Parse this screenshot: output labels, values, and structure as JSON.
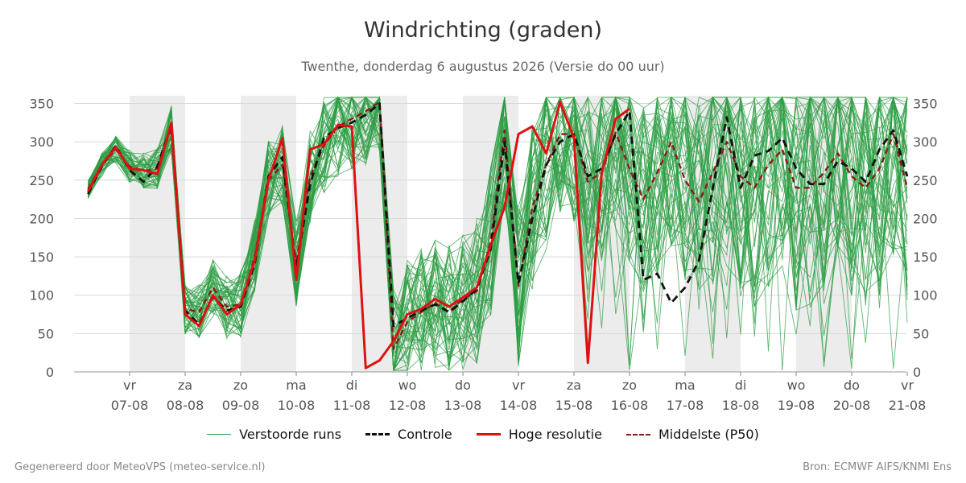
{
  "title": "Windrichting (graden)",
  "subtitle": "Twenthe, donderdag  6 augustus 2026 (Versie do 00 uur)",
  "footer_left": "Gegenereerd door MeteoVPS (meteo-service.nl)",
  "footer_right": "Bron: ECMWF AIFS/KNMI Ens",
  "colors": {
    "ensemble": "#2e9e44",
    "control": "#111111",
    "hires": "#e01010",
    "median": "#8b1a1a",
    "shade": "#ececec",
    "grid": "#d9d9d9"
  },
  "legend": [
    {
      "label": "Verstoorde runs",
      "key": "ensemble",
      "style": "thin"
    },
    {
      "label": "Controle",
      "key": "control",
      "style": "dashed"
    },
    {
      "label": "Hoge resolutie",
      "key": "hires",
      "style": "solid"
    },
    {
      "label": "Middelste (P50)",
      "key": "median",
      "style": "dashed-thin"
    }
  ],
  "chart_data": {
    "type": "line",
    "title": "Windrichting (graden)",
    "x_unit": "days from 07-08 00:00",
    "xlim": [
      -0.75,
      14.0
    ],
    "ylim": [
      0,
      360
    ],
    "yticks": [
      0,
      50,
      100,
      150,
      200,
      250,
      300,
      350
    ],
    "xticks": [
      {
        "x": 0,
        "day": "vr",
        "date": "07-08"
      },
      {
        "x": 1,
        "day": "za",
        "date": "08-08"
      },
      {
        "x": 2,
        "day": "zo",
        "date": "09-08"
      },
      {
        "x": 3,
        "day": "ma",
        "date": "10-08"
      },
      {
        "x": 4,
        "day": "di",
        "date": "11-08"
      },
      {
        "x": 5,
        "day": "wo",
        "date": "12-08"
      },
      {
        "x": 6,
        "day": "do",
        "date": "13-08"
      },
      {
        "x": 7,
        "day": "vr",
        "date": "14-08"
      },
      {
        "x": 8,
        "day": "za",
        "date": "15-08"
      },
      {
        "x": 9,
        "day": "zo",
        "date": "16-08"
      },
      {
        "x": 10,
        "day": "ma",
        "date": "17-08"
      },
      {
        "x": 11,
        "day": "di",
        "date": "18-08"
      },
      {
        "x": 12,
        "day": "wo",
        "date": "19-08"
      },
      {
        "x": 13,
        "day": "do",
        "date": "20-08"
      },
      {
        "x": 14,
        "day": "vr",
        "date": "21-08"
      }
    ],
    "shaded_bands": [
      [
        0,
        1
      ],
      [
        2,
        3
      ],
      [
        4,
        5
      ],
      [
        6,
        7
      ],
      [
        8,
        9
      ],
      [
        10,
        11
      ],
      [
        12,
        13
      ]
    ],
    "grid": true,
    "legend_position": "bottom",
    "series": [
      {
        "name": "Hoge resolutie",
        "key": "hires",
        "x": [
          -0.75,
          -0.5,
          -0.25,
          0.0,
          0.25,
          0.5,
          0.75,
          1.0,
          1.25,
          1.5,
          1.75,
          2.0,
          2.25,
          2.5,
          2.75,
          3.0,
          3.25,
          3.5,
          3.75,
          4.0,
          4.25,
          4.5,
          4.75,
          5.0,
          5.25,
          5.5,
          5.75,
          6.0,
          6.25,
          6.5,
          6.75,
          7.0,
          7.25,
          7.5,
          7.75,
          8.0,
          8.25,
          8.5,
          8.75,
          9.0
        ],
        "values": [
          235,
          270,
          293,
          265,
          263,
          258,
          325,
          75,
          60,
          100,
          75,
          88,
          145,
          250,
          305,
          120,
          290,
          297,
          322,
          320,
          5,
          15,
          40,
          75,
          82,
          95,
          85,
          97,
          110,
          165,
          215,
          310,
          320,
          285,
          352,
          305,
          12,
          260,
          330,
          343
        ]
      },
      {
        "name": "Controle",
        "key": "control",
        "x": [
          -0.75,
          -0.5,
          -0.25,
          0.0,
          0.25,
          0.5,
          0.75,
          1.0,
          1.25,
          1.5,
          1.75,
          2.0,
          2.25,
          2.5,
          2.75,
          3.0,
          3.25,
          3.5,
          3.75,
          4.0,
          4.25,
          4.5,
          4.75,
          5.0,
          5.25,
          5.5,
          5.75,
          6.0,
          6.25,
          6.5,
          6.75,
          7.0,
          7.25,
          7.5,
          7.75,
          8.0,
          8.25,
          8.5,
          8.75,
          9.0,
          9.25,
          9.5,
          9.75,
          10.0,
          10.25,
          10.5,
          10.75,
          11.0,
          11.25,
          11.5,
          11.75,
          12.0,
          12.25,
          12.5,
          12.75,
          13.0,
          13.25,
          13.5,
          13.75,
          14.0
        ],
        "values": [
          232,
          268,
          295,
          263,
          248,
          268,
          322,
          80,
          62,
          98,
          80,
          85,
          140,
          255,
          280,
          135,
          245,
          305,
          318,
          325,
          335,
          350,
          60,
          70,
          80,
          88,
          78,
          92,
          108,
          160,
          300,
          115,
          200,
          270,
          300,
          310,
          255,
          265,
          310,
          340,
          120,
          128,
          90,
          110,
          145,
          240,
          332,
          240,
          282,
          288,
          305,
          265,
          245,
          245,
          275,
          265,
          248,
          290,
          315,
          255
        ]
      },
      {
        "name": "Middelste (P50)",
        "key": "median",
        "x": [
          -0.75,
          -0.5,
          -0.25,
          0.0,
          0.25,
          0.5,
          0.75,
          1.0,
          1.25,
          1.5,
          1.75,
          2.0,
          2.25,
          2.5,
          2.75,
          3.0,
          3.25,
          3.5,
          3.75,
          4.0,
          4.25,
          4.5,
          4.75,
          5.0,
          5.25,
          5.5,
          5.75,
          6.0,
          6.25,
          6.5,
          6.75,
          7.0,
          7.25,
          7.5,
          7.75,
          8.0,
          8.25,
          8.5,
          8.75,
          9.0,
          9.25,
          9.5,
          9.75,
          10.0,
          10.25,
          10.5,
          10.75,
          11.0,
          11.25,
          11.5,
          11.75,
          12.0,
          12.25,
          12.5,
          12.75,
          13.0,
          13.25,
          13.5,
          13.75,
          14.0
        ],
        "values": [
          238,
          270,
          290,
          268,
          262,
          265,
          318,
          82,
          78,
          110,
          85,
          88,
          150,
          250,
          270,
          140,
          255,
          295,
          320,
          330,
          340,
          352,
          30,
          65,
          78,
          90,
          78,
          95,
          105,
          170,
          315,
          112,
          215,
          270,
          310,
          310,
          248,
          260,
          312,
          265,
          225,
          260,
          300,
          250,
          222,
          260,
          300,
          255,
          240,
          270,
          290,
          240,
          240,
          260,
          285,
          255,
          240,
          265,
          310,
          240
        ]
      }
    ]
  }
}
